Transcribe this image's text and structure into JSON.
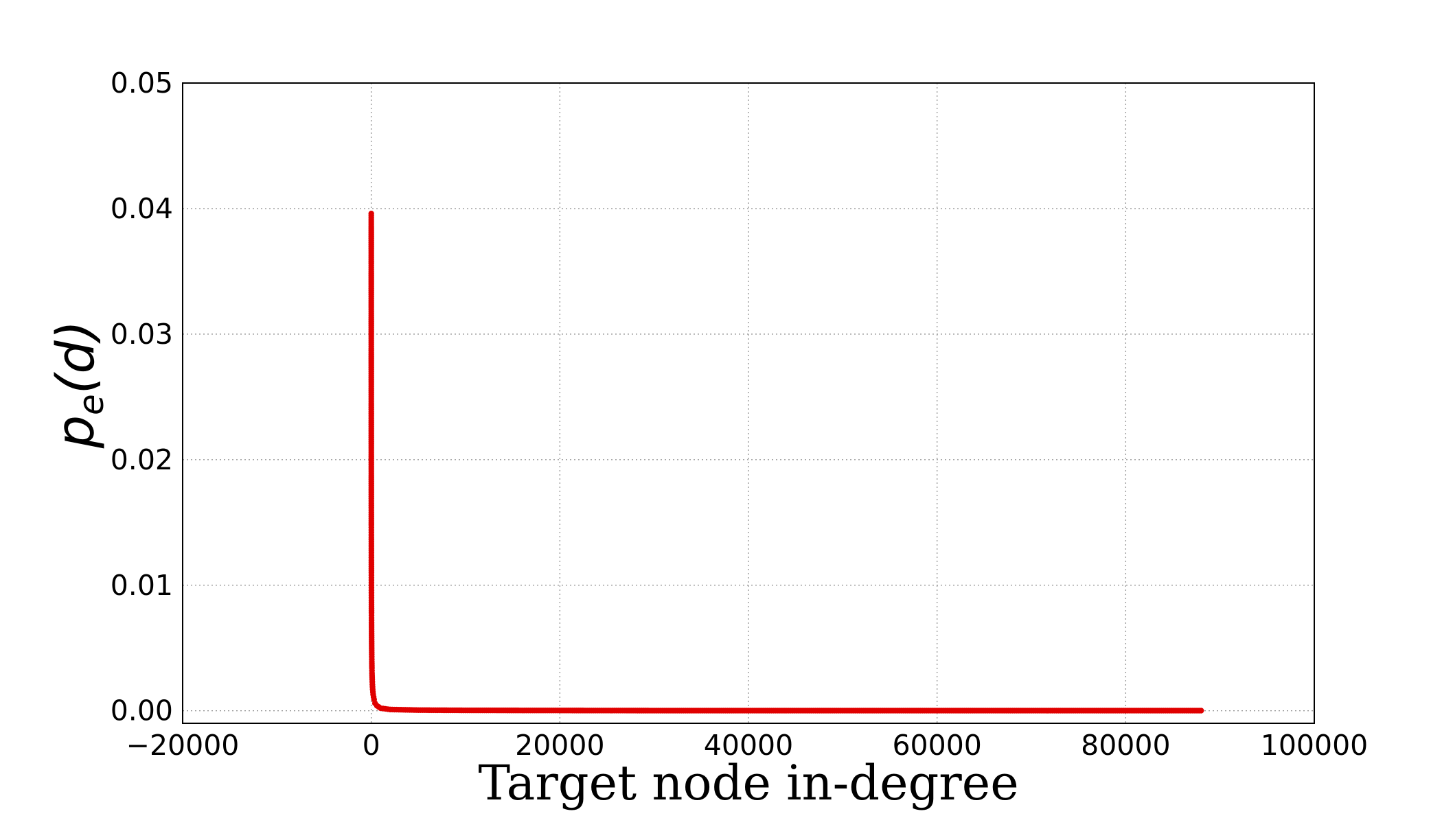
{
  "chart_data": {
    "type": "scatter",
    "xlabel": "Target node in-degree",
    "ylabel": {
      "base": "p",
      "subscript": "e",
      "arg": "(d)"
    },
    "xlim": [
      -20000,
      100000
    ],
    "ylim": [
      -0.001,
      0.05
    ],
    "xticks": [
      -20000,
      0,
      20000,
      40000,
      60000,
      80000,
      100000
    ],
    "xtick_labels": [
      "−20000",
      "0",
      "20000",
      "40000",
      "60000",
      "80000",
      "100000"
    ],
    "yticks": [
      0.0,
      0.01,
      0.02,
      0.03,
      0.04,
      0.05
    ],
    "ytick_labels": [
      "0.00",
      "0.01",
      "0.02",
      "0.03",
      "0.04",
      "0.05"
    ],
    "grid": true,
    "marker_color": "#e00000",
    "series": [
      {
        "points": [
          [
            1,
            0.0396
          ],
          [
            2,
            0.032
          ],
          [
            3,
            0.0272
          ],
          [
            4,
            0.024
          ],
          [
            5,
            0.0216
          ],
          [
            6,
            0.0196
          ],
          [
            7,
            0.0181
          ],
          [
            8,
            0.0169
          ],
          [
            9,
            0.0158
          ],
          [
            10,
            0.0148
          ],
          [
            11,
            0.014
          ],
          [
            12,
            0.0133
          ],
          [
            13,
            0.0126
          ],
          [
            14,
            0.012
          ],
          [
            15,
            0.0115
          ],
          [
            16,
            0.011
          ],
          [
            17,
            0.0106
          ],
          [
            18,
            0.0102
          ],
          [
            19,
            0.0098
          ],
          [
            20,
            0.0094
          ],
          [
            22,
            0.0088
          ],
          [
            24,
            0.0083
          ],
          [
            26,
            0.0078
          ],
          [
            28,
            0.0074
          ],
          [
            30,
            0.007
          ],
          [
            33,
            0.0065
          ],
          [
            36,
            0.006
          ],
          [
            40,
            0.0055
          ],
          [
            45,
            0.005
          ],
          [
            50,
            0.0045
          ],
          [
            60,
            0.0039
          ],
          [
            70,
            0.0034
          ],
          [
            80,
            0.003
          ],
          [
            100,
            0.0025
          ],
          [
            120,
            0.0021
          ],
          [
            150,
            0.0017
          ],
          [
            200,
            0.0013
          ],
          [
            300,
            0.0009
          ],
          [
            400,
            0.0006
          ],
          [
            600,
            0.0004
          ],
          [
            1000,
            0.0002
          ],
          [
            2000,
            0.0001
          ],
          [
            5000,
            5e-05
          ],
          [
            10000,
            3e-05
          ],
          [
            20000,
            2e-05
          ],
          [
            30000,
            1e-05
          ],
          [
            40000,
            1e-05
          ],
          [
            50000,
            1e-05
          ],
          [
            60000,
            1e-05
          ],
          [
            70000,
            1e-05
          ],
          [
            80000,
            1e-05
          ],
          [
            88000,
            1e-05
          ]
        ]
      }
    ]
  }
}
